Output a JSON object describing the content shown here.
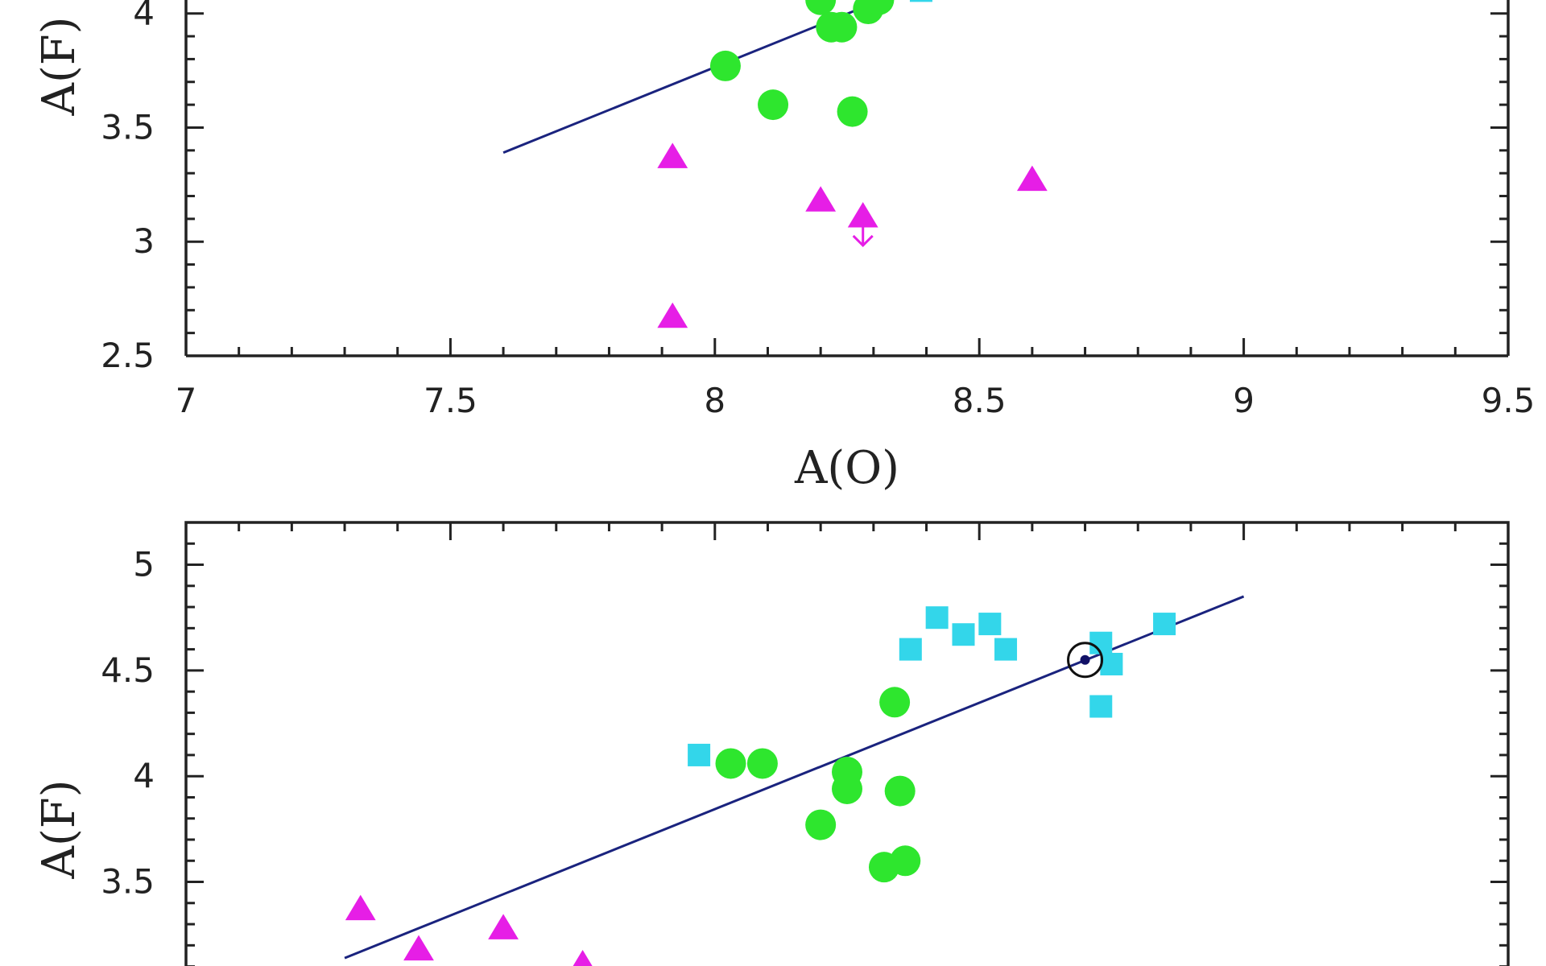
{
  "colors": {
    "triangle": "#e61ee6",
    "circle": "#2ee62e",
    "square": "#33d6ea",
    "fit_line": "#1a237e",
    "axis": "#222222"
  },
  "chart_data": [
    {
      "type": "scatter",
      "xlabel": "A(O)",
      "ylabel": "A(F)",
      "xlim": [
        7,
        9.5
      ],
      "ylim": [
        2.5,
        4.2
      ],
      "xticks": [
        7,
        7.5,
        8,
        8.5,
        9,
        9.5
      ],
      "xtick_labels": [
        "7",
        "7.5",
        "8",
        "8.5",
        "9",
        "9.5"
      ],
      "yticks": [
        2.5,
        3,
        3.5,
        4
      ],
      "ytick_labels": [
        "2.5",
        "3",
        "3.5",
        "4"
      ],
      "grid": false,
      "series": [
        {
          "marker": "triangle",
          "points": [
            [
              7.92,
              3.37
            ],
            [
              7.92,
              2.67
            ],
            [
              8.2,
              3.18
            ],
            [
              8.28,
              3.11
            ],
            [
              8.6,
              3.27
            ]
          ],
          "upper_limits": [
            [
              8.28,
              3.04
            ]
          ]
        },
        {
          "marker": "circle",
          "points": [
            [
              8.02,
              3.77
            ],
            [
              8.11,
              3.6
            ],
            [
              8.2,
              4.06
            ],
            [
              8.22,
              3.94
            ],
            [
              8.24,
              3.94
            ],
            [
              8.26,
              3.57
            ],
            [
              8.29,
              4.02
            ],
            [
              8.31,
              4.06
            ]
          ]
        },
        {
          "marker": "square",
          "points": [
            [
              8.39,
              4.1
            ]
          ]
        }
      ],
      "fit_line": {
        "x": [
          7.6,
          8.38
        ],
        "y": [
          3.39,
          4.12
        ]
      }
    },
    {
      "type": "scatter",
      "xlabel": "",
      "ylabel": "A(F)",
      "xlim": [
        7,
        9.5
      ],
      "ylim": [
        2.95,
        5.2
      ],
      "xticks": [
        7,
        7.5,
        8,
        8.5,
        9,
        9.5
      ],
      "yticks": [
        3.5,
        4,
        4.5,
        5
      ],
      "ytick_labels": [
        "3.5",
        "4",
        "4.5",
        "5"
      ],
      "grid": false,
      "series": [
        {
          "marker": "triangle",
          "points": [
            [
              7.33,
              3.37
            ],
            [
              7.44,
              3.18
            ],
            [
              7.6,
              3.28
            ],
            [
              7.75,
              3.11
            ]
          ]
        },
        {
          "marker": "circle",
          "points": [
            [
              8.03,
              4.06
            ],
            [
              8.09,
              4.06
            ],
            [
              8.2,
              3.77
            ],
            [
              8.25,
              4.02
            ],
            [
              8.25,
              3.94
            ],
            [
              8.32,
              3.57
            ],
            [
              8.36,
              3.6
            ],
            [
              8.34,
              4.35
            ],
            [
              8.35,
              3.93
            ]
          ]
        },
        {
          "marker": "square",
          "points": [
            [
              7.97,
              4.1
            ],
            [
              8.37,
              4.6
            ],
            [
              8.42,
              4.75
            ],
            [
              8.47,
              4.67
            ],
            [
              8.52,
              4.72
            ],
            [
              8.55,
              4.6
            ],
            [
              8.73,
              4.63
            ],
            [
              8.75,
              4.53
            ],
            [
              8.73,
              4.33
            ],
            [
              8.85,
              4.72
            ]
          ]
        }
      ],
      "sun": {
        "x": 8.7,
        "y": 4.55
      },
      "fit_line": {
        "x": [
          7.3,
          9.0
        ],
        "y": [
          3.14,
          4.85
        ]
      }
    }
  ]
}
